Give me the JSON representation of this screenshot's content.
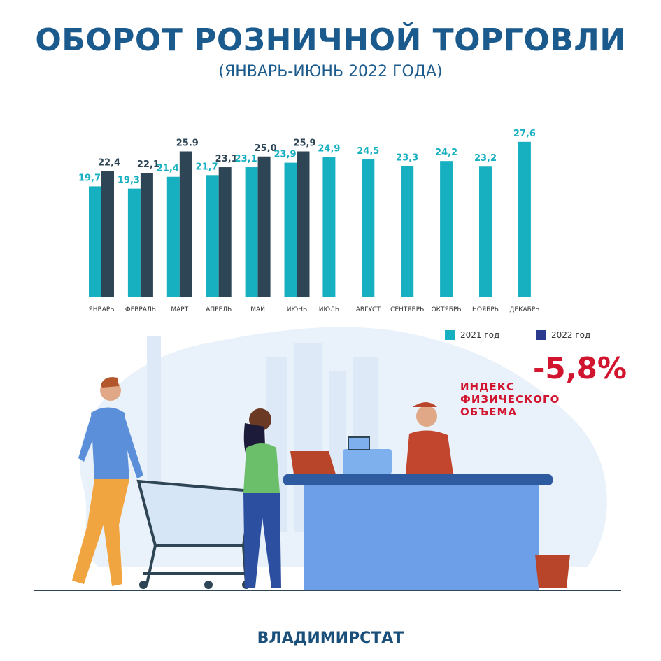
{
  "header": {
    "title": "ОБОРОТ РОЗНИЧНОЙ ТОРГОВЛИ",
    "subtitle": "(ЯНВАРЬ-ИЮНЬ 2022 ГОДА)"
  },
  "chart_data": {
    "type": "bar",
    "categories": [
      "ЯНВАРЬ",
      "ФЕВРАЛЬ",
      "МАРТ",
      "АПРЕЛЬ",
      "МАЙ",
      "ИЮНЬ",
      "ИЮЛЬ",
      "АВГУСТ",
      "СЕНТЯБРЬ",
      "ОКТЯБРЬ",
      "НОЯБРЬ",
      "ДЕКАБРЬ"
    ],
    "series": [
      {
        "name": "2021 год",
        "color": "#17b0c0",
        "values": [
          19.7,
          19.3,
          21.4,
          21.7,
          23.1,
          23.9,
          24.9,
          24.5,
          23.3,
          24.2,
          23.2,
          27.6
        ],
        "labels": [
          "19,7",
          "19,3",
          "21,4",
          "21,7",
          "23,1",
          "23,9",
          "24,9",
          "24,5",
          "23,3",
          "24,2",
          "23,2",
          "27,6"
        ]
      },
      {
        "name": "2022 год",
        "color": "#2e4556",
        "values": [
          22.4,
          22.1,
          25.9,
          23.1,
          25.0,
          25.9,
          null,
          null,
          null,
          null,
          null,
          null
        ],
        "labels": [
          "22,4",
          "22,1",
          "25.9",
          "23,1",
          "25,0",
          "25,9"
        ]
      }
    ],
    "ylim": [
      0,
      28
    ],
    "grid": false,
    "legend": "bottom-right"
  },
  "legend": {
    "items": [
      {
        "label": "2021 год",
        "color": "#17b0c0"
      },
      {
        "label": "2022 год",
        "color": "#2b3a8c"
      }
    ]
  },
  "index": {
    "label_lines": [
      "ИНДЕКС",
      "ФИЗИЧЕСКОГО",
      "ОБЪЕМА"
    ],
    "value": "-5,8%"
  },
  "footer": {
    "text": "ВЛАДИМИРСТАТ"
  }
}
